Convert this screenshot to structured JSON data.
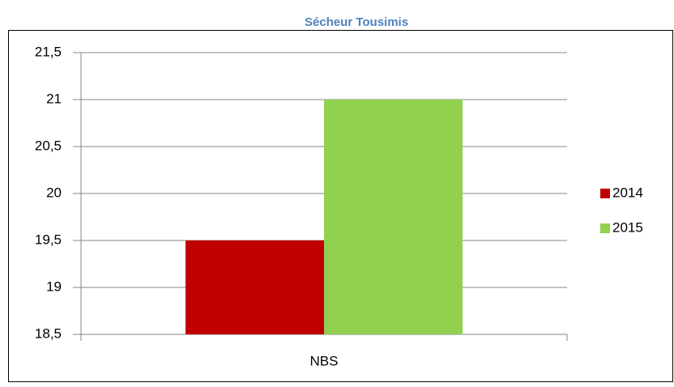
{
  "chart_data": {
    "type": "bar",
    "title": "Sécheur Tousimis",
    "categories": [
      "NBS"
    ],
    "series": [
      {
        "name": "2014",
        "color": "#c00000",
        "values": [
          19.5
        ]
      },
      {
        "name": "2015",
        "color": "#92d050",
        "values": [
          21
        ]
      }
    ],
    "ylim": [
      18.5,
      21.5
    ],
    "yticks": [
      {
        "value": 18.5,
        "label": "18,5"
      },
      19,
      {
        "value": 19.5,
        "label": "19,5"
      },
      20,
      {
        "value": 20.5,
        "label": "20,5"
      },
      21,
      {
        "value": 21.5,
        "label": "21,5"
      }
    ],
    "grid": true,
    "legend": "right"
  }
}
